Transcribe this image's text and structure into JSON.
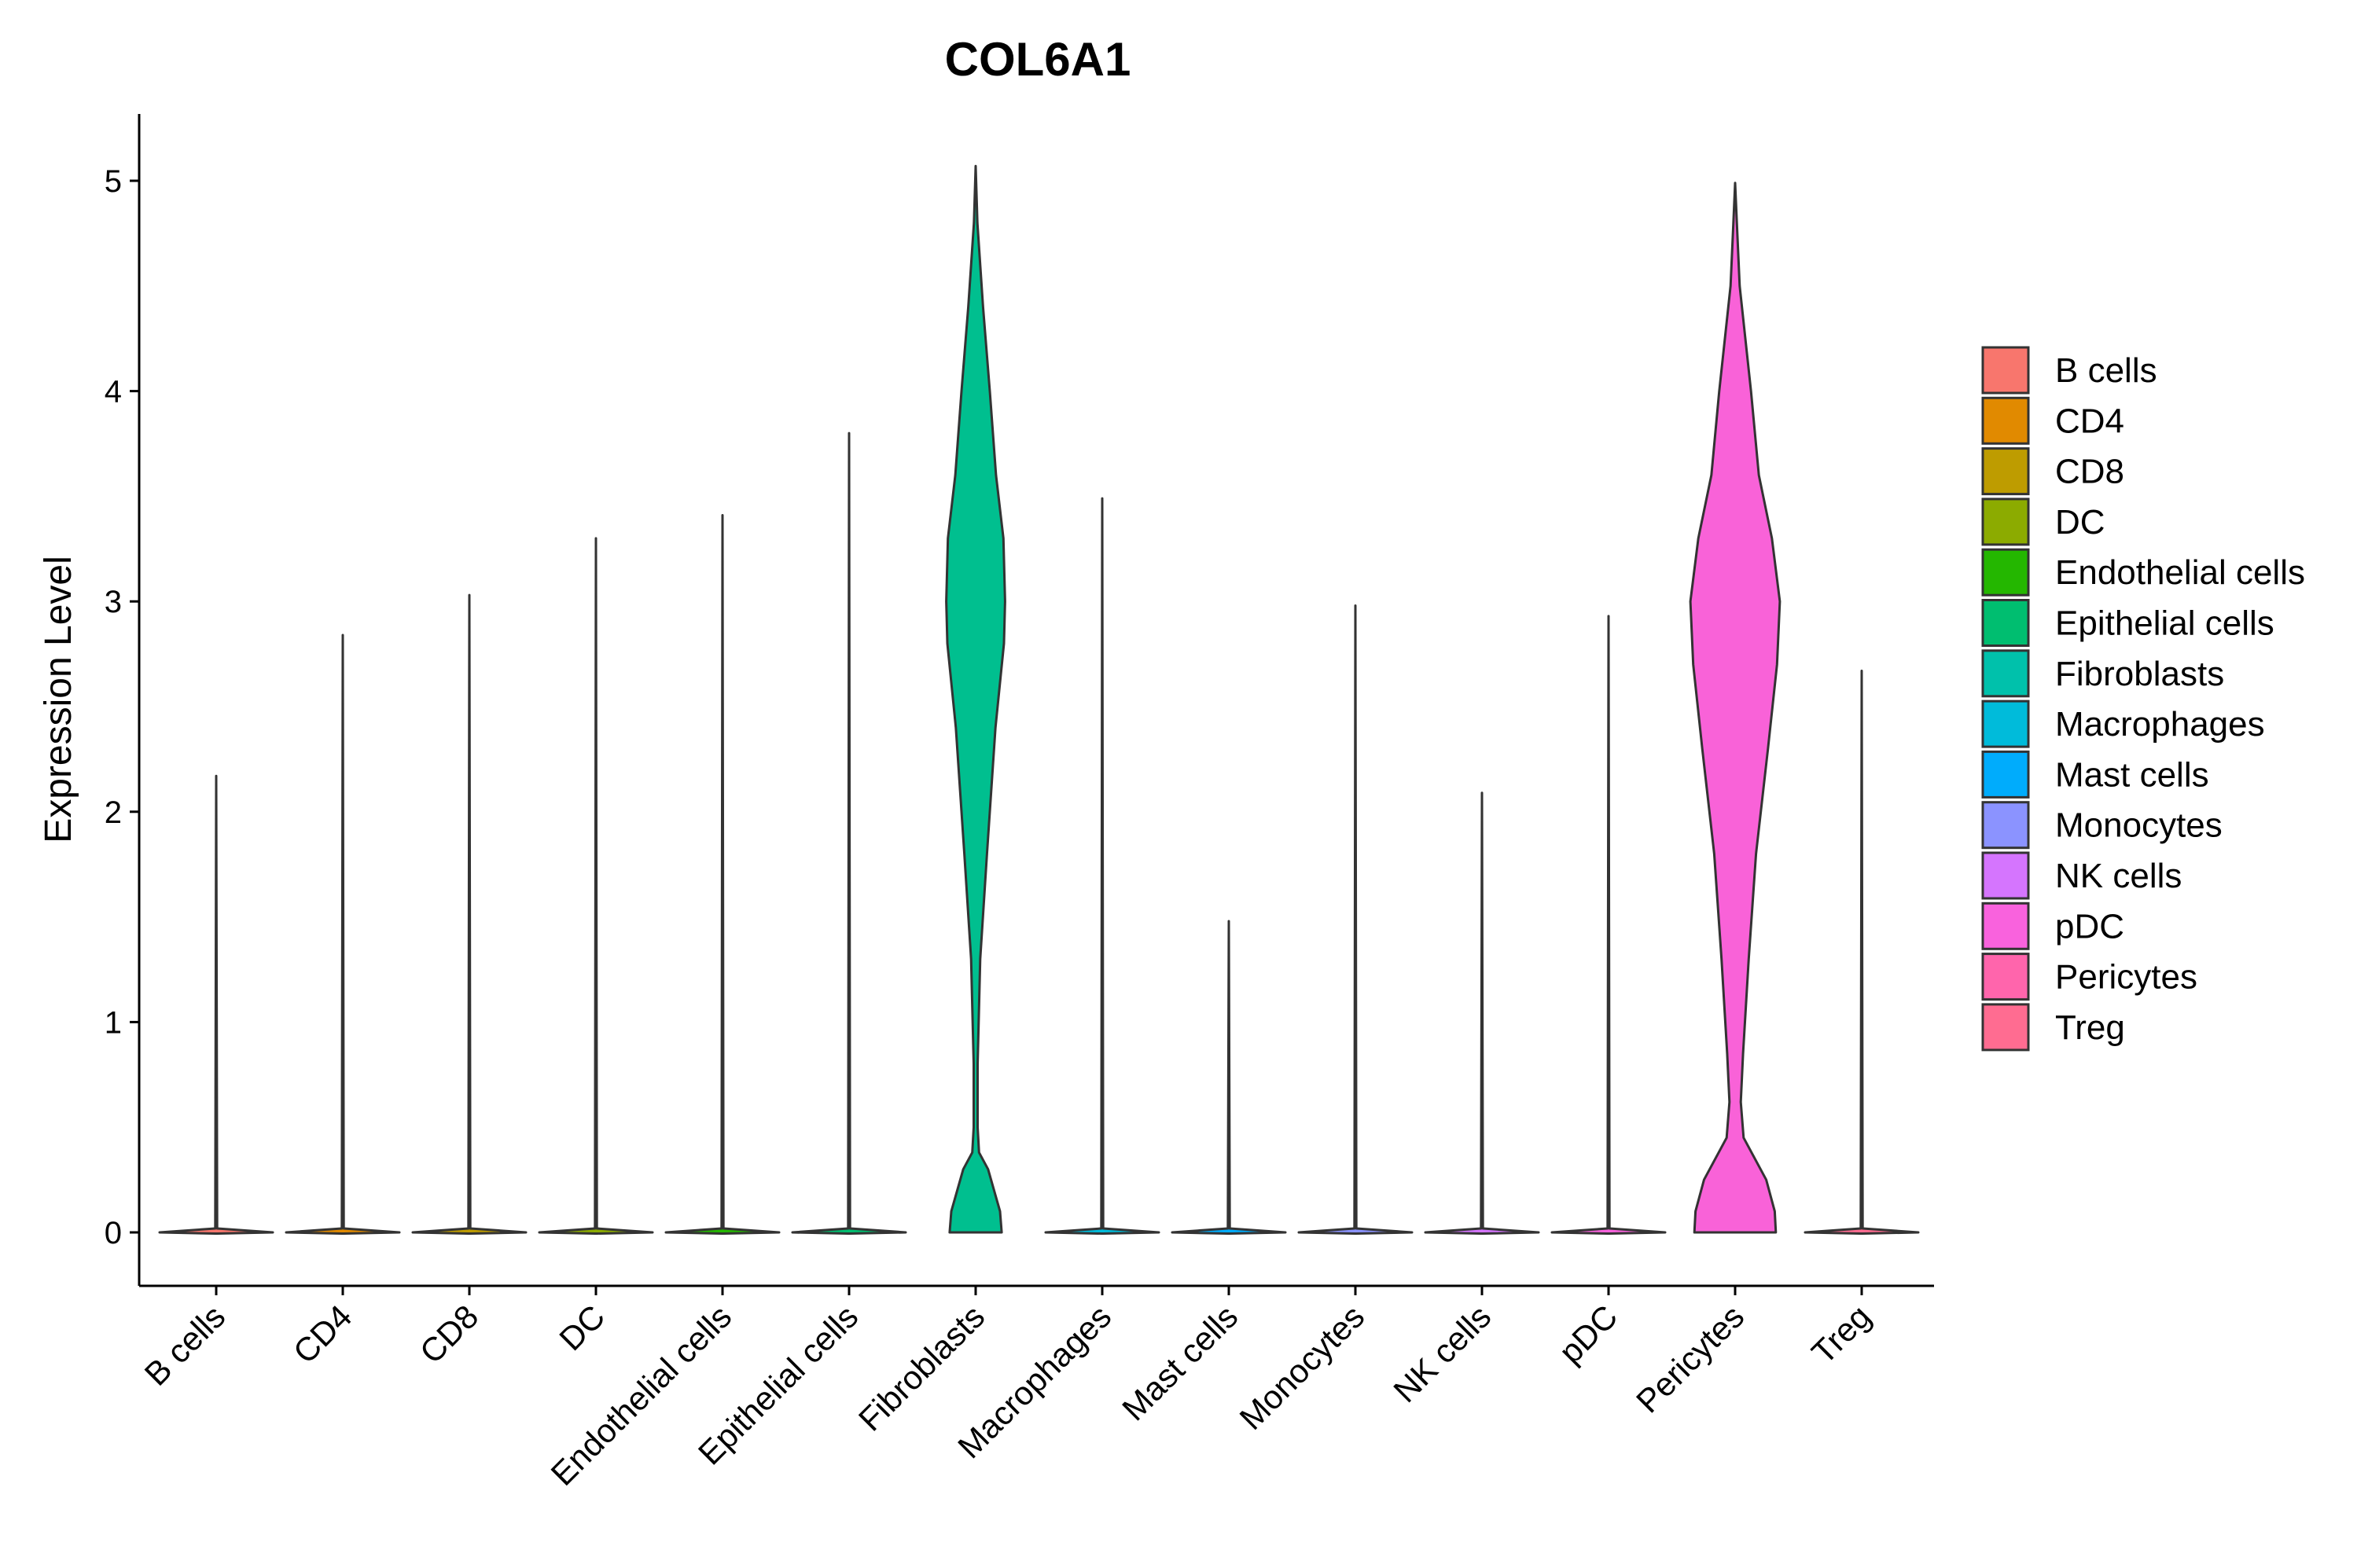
{
  "chart_data": {
    "type": "violin",
    "title": "COL6A1",
    "xlabel": "",
    "ylabel": "Expression Level",
    "ylim": [
      -0.25,
      5.32
    ],
    "yticks": [
      0,
      1,
      2,
      3,
      4,
      5
    ],
    "categories": [
      "B cells",
      "CD4",
      "CD8",
      "DC",
      "Endothelial cells",
      "Epithelial cells",
      "Fibroblasts",
      "Macrophages",
      "Mast cells",
      "Monocytes",
      "NK cells",
      "pDC",
      "Pericytes",
      "Treg"
    ],
    "colors": [
      "#F8766D",
      "#E18A00",
      "#BE9C00",
      "#8CAB00",
      "#24B700",
      "#00BE70",
      "#00C1AB",
      "#00BBDA",
      "#00ACFC",
      "#8B93FF",
      "#D575FE",
      "#F962DD",
      "#FF65AC",
      "#FF6C91"
    ],
    "fill_colors": [
      "#F8766D",
      "#E18A00",
      "#BE9C00",
      "#8CAB00",
      "#24B700",
      "#00BE70",
      "#00BF8F",
      "#00BBDA",
      "#00ACFC",
      "#8B93FF",
      "#D575FE",
      "#F962DD",
      "#F962D8",
      "#FF6C91"
    ],
    "max_values": [
      2.17,
      2.84,
      3.03,
      3.3,
      3.41,
      3.8,
      5.07,
      3.49,
      1.48,
      2.98,
      2.09,
      2.93,
      4.99,
      2.67
    ],
    "violins": [
      {
        "category": "Fibroblasts",
        "ymin": 0,
        "ymax": 5.07,
        "profile": [
          [
            0,
            0.46
          ],
          [
            0.1,
            0.43
          ],
          [
            0.3,
            0.22
          ],
          [
            0.38,
            0.06
          ],
          [
            0.5,
            0.035
          ],
          [
            0.8,
            0.035
          ],
          [
            1.3,
            0.08
          ],
          [
            1.8,
            0.2
          ],
          [
            2.4,
            0.35
          ],
          [
            2.8,
            0.5
          ],
          [
            3.0,
            0.52
          ],
          [
            3.3,
            0.49
          ],
          [
            3.6,
            0.36
          ],
          [
            4.0,
            0.25
          ],
          [
            4.4,
            0.13
          ],
          [
            4.8,
            0.03
          ],
          [
            5.07,
            0
          ]
        ]
      },
      {
        "category": "Pericytes",
        "ymin": 0,
        "ymax": 4.99,
        "profile": [
          [
            0,
            0.72
          ],
          [
            0.1,
            0.7
          ],
          [
            0.25,
            0.55
          ],
          [
            0.45,
            0.15
          ],
          [
            0.62,
            0.1
          ],
          [
            0.85,
            0.14
          ],
          [
            1.3,
            0.24
          ],
          [
            1.8,
            0.37
          ],
          [
            2.3,
            0.58
          ],
          [
            2.7,
            0.74
          ],
          [
            3.0,
            0.79
          ],
          [
            3.3,
            0.65
          ],
          [
            3.6,
            0.42
          ],
          [
            4.0,
            0.28
          ],
          [
            4.5,
            0.08
          ],
          [
            4.8,
            0.03
          ],
          [
            4.99,
            0
          ]
        ]
      }
    ],
    "legend": {
      "position": "right",
      "entries": [
        "B cells",
        "CD4",
        "CD8",
        "DC",
        "Endothelial cells",
        "Epithelial cells",
        "Fibroblasts",
        "Macrophages",
        "Mast cells",
        "Monocytes",
        "NK cells",
        "pDC",
        "Pericytes",
        "Treg"
      ]
    }
  }
}
